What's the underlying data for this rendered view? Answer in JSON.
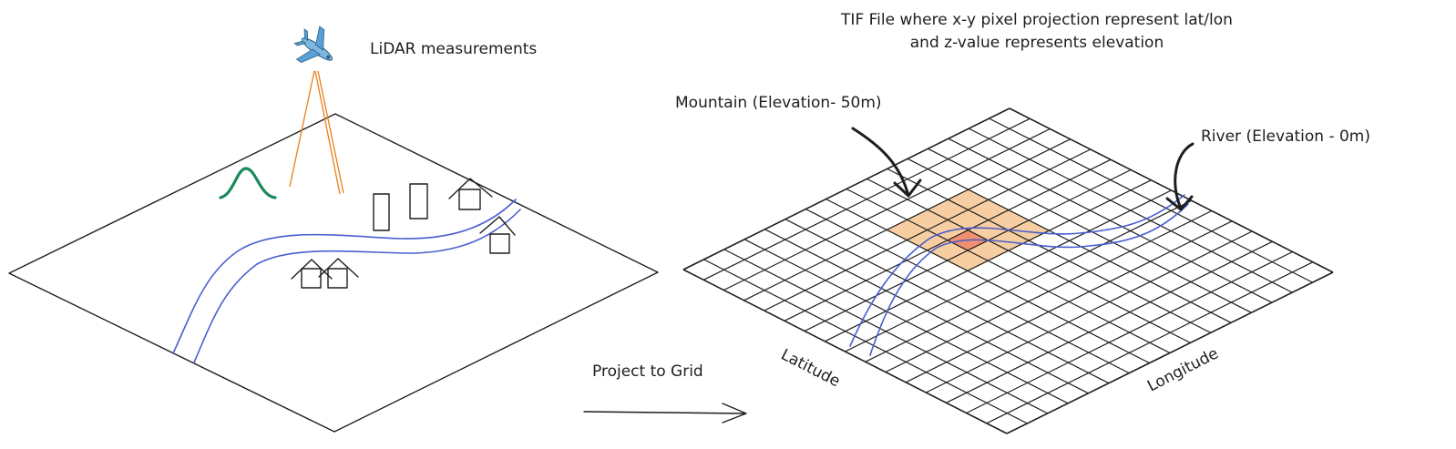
{
  "labels": {
    "lidar": "LiDAR measurements",
    "tif_line1": "TIF File where x-y pixel projection represent lat/lon",
    "tif_line2": "and z-value represents elevation",
    "mountain": "Mountain (Elevation- 50m)",
    "river": "River (Elevation - 0m)",
    "project": "Project to Grid",
    "latitude": "Latitude",
    "longitude": "Longitude"
  },
  "icons": {
    "airplane": "airplane-icon"
  },
  "colors": {
    "ink": "#1e1e1e",
    "river": "#4a5ed0",
    "laser": "#e8801a",
    "mountain_curve": "#1b8a5a",
    "highlight_fill": "#f6c690",
    "highlight_center": "#f08a6a"
  },
  "grid": {
    "cells": 16
  }
}
